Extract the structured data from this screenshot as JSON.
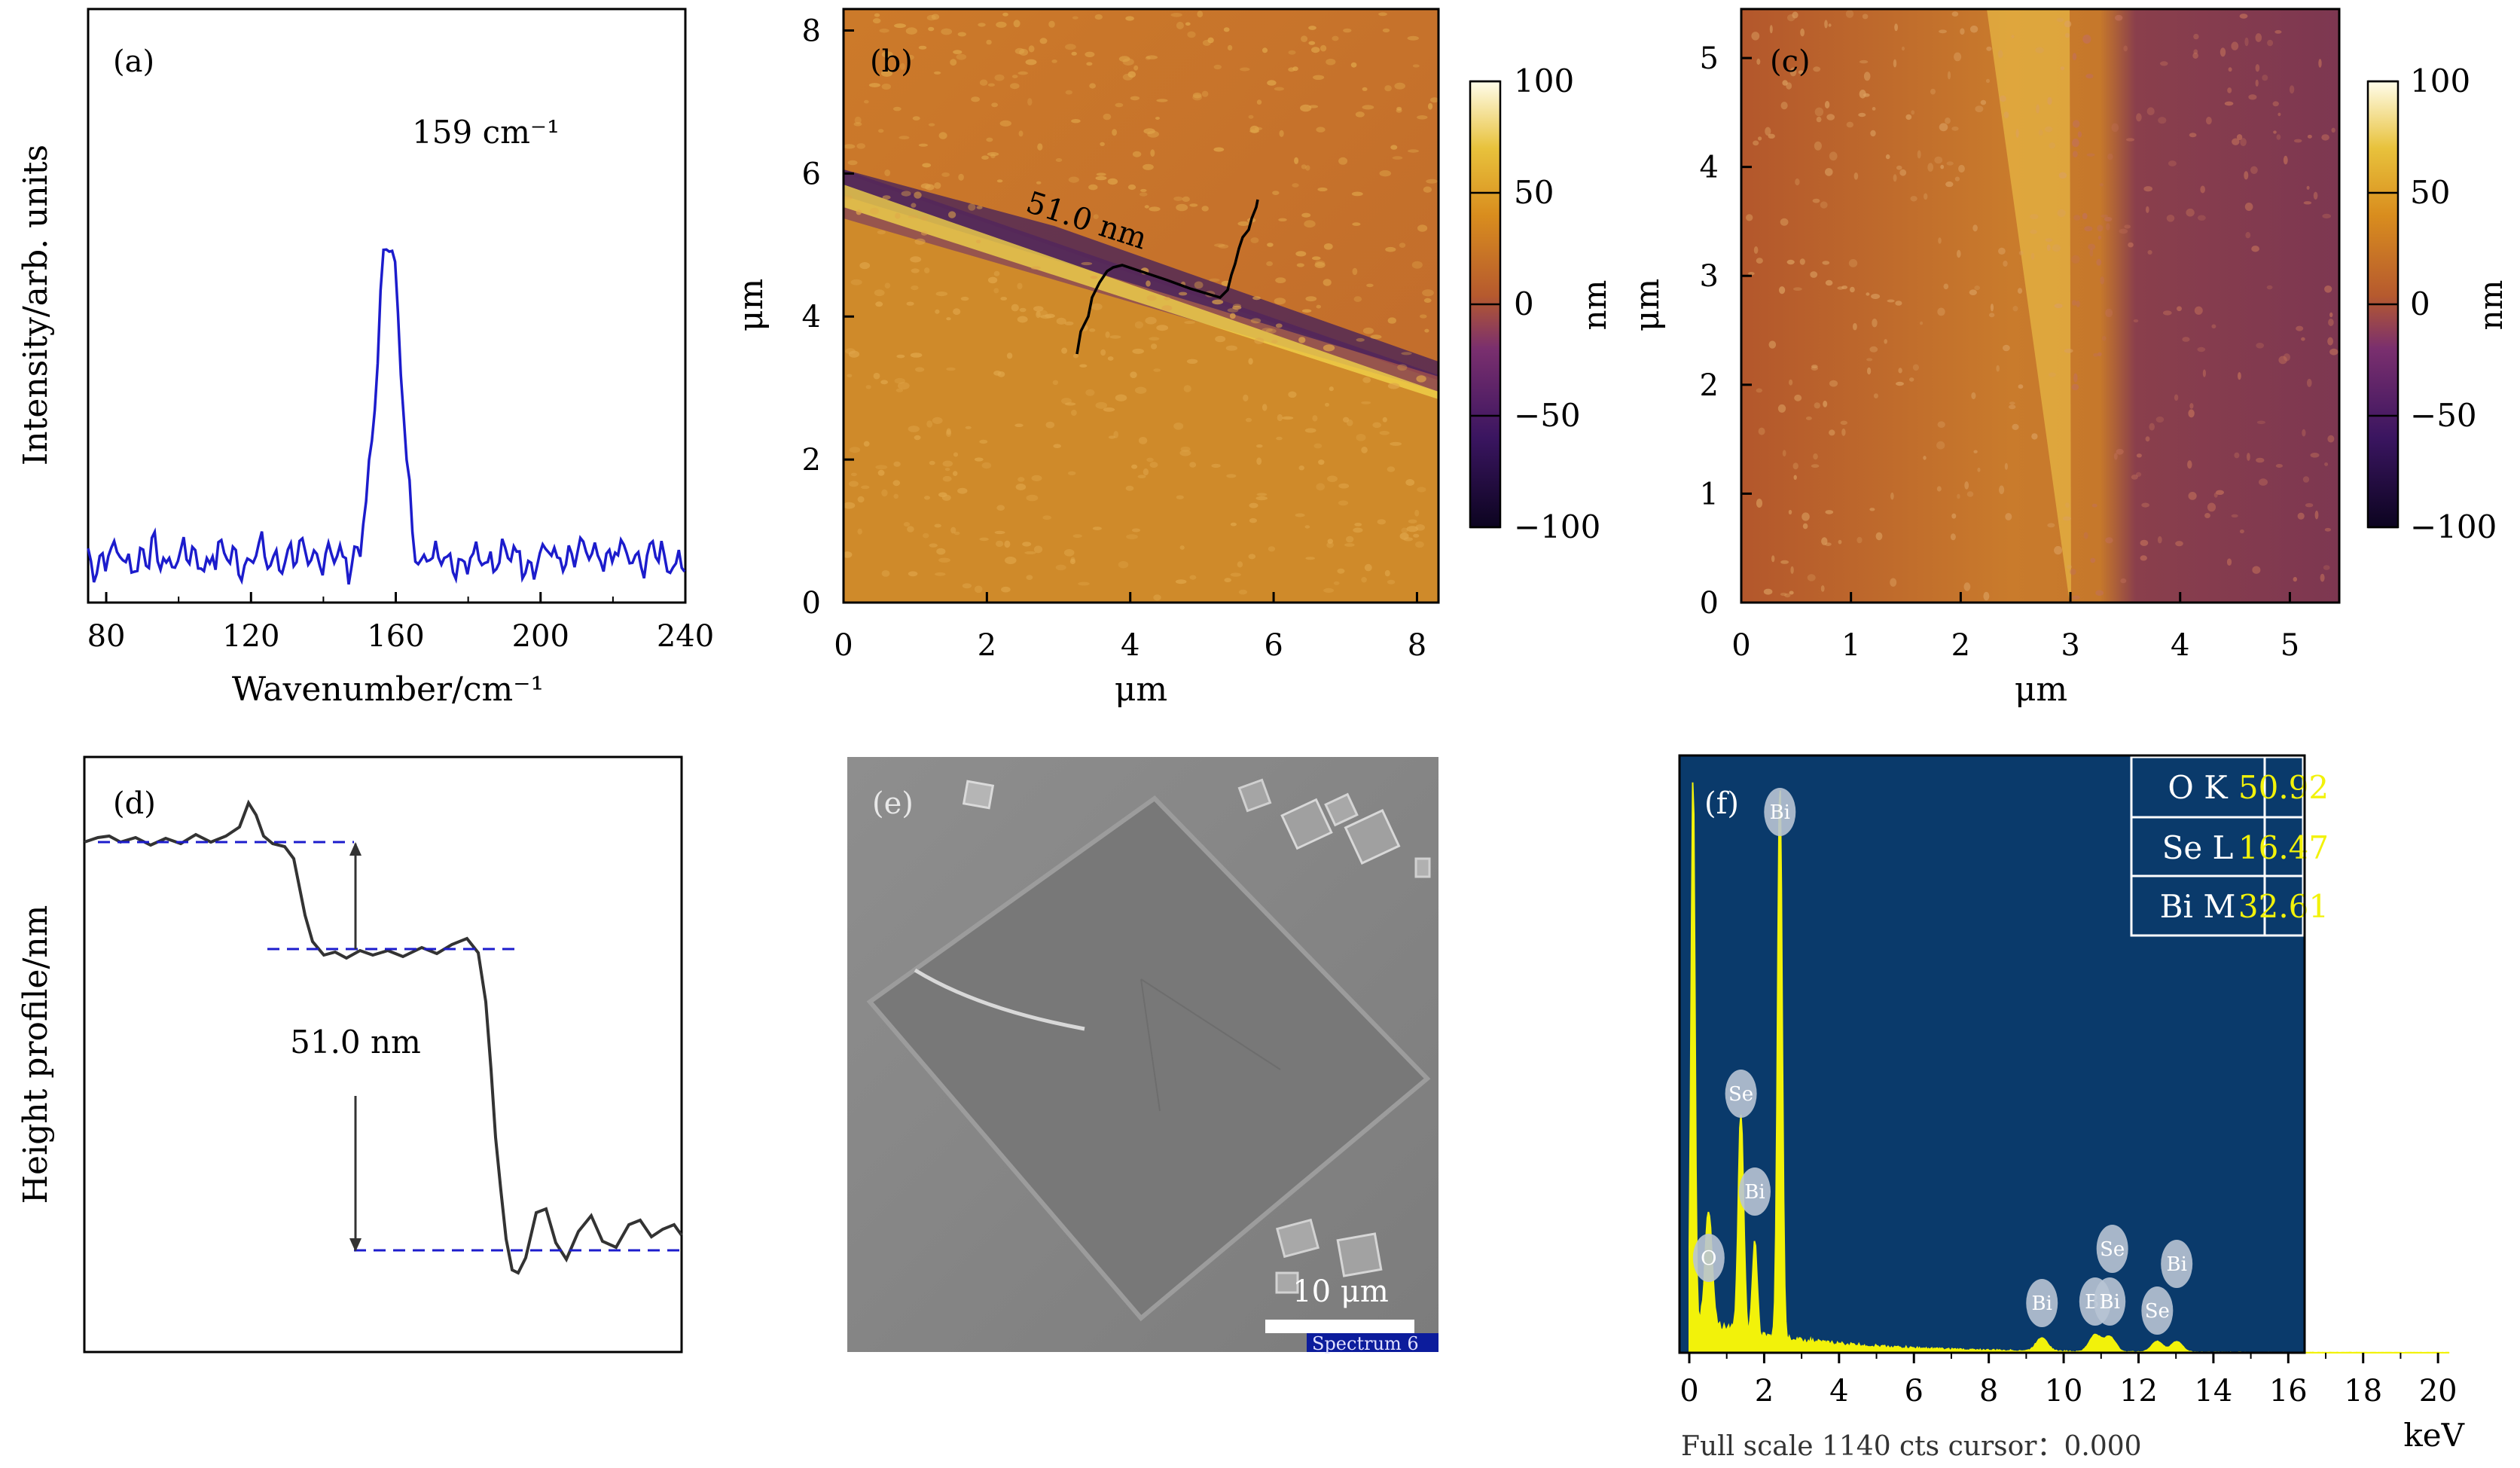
{
  "panels": {
    "a": {
      "label": "(a)",
      "ylabel": "Intensity/arb. units",
      "xlabel": "Wavenumber/cm⁻¹",
      "xticks": [
        "80",
        "120",
        "160",
        "200",
        "240"
      ],
      "peak_label": "159 cm⁻¹",
      "line_color": "#1c1ccc"
    },
    "b": {
      "label": "(b)",
      "xlabel": "μm",
      "ylabel": "μm",
      "xticks": [
        "0",
        "2",
        "4",
        "6",
        "8"
      ],
      "yticks": [
        "0",
        "2",
        "4",
        "6",
        "8"
      ],
      "step_label": "51.0 nm",
      "colorbar_unit": "nm",
      "colorbar_ticks": [
        "100",
        "50",
        "0",
        "−50",
        "−100"
      ]
    },
    "c": {
      "label": "(c)",
      "xlabel": "μm",
      "ylabel": "μm",
      "xticks": [
        "0",
        "1",
        "2",
        "3",
        "4",
        "5"
      ],
      "yticks": [
        "0",
        "1",
        "2",
        "3",
        "4",
        "5"
      ],
      "colorbar_unit": "nm",
      "colorbar_ticks": [
        "100",
        "50",
        "0",
        "−50",
        "−100"
      ]
    },
    "d": {
      "label": "(d)",
      "ylabel": "Height profile/nm",
      "step_label": "51.0 nm",
      "dash_color": "#1c1ccc"
    },
    "e": {
      "label": "(e)",
      "scale_label": "10 μm",
      "spectrum_label": "Spectrum 6"
    },
    "f": {
      "label": "(f)",
      "xlabel": "keV",
      "xticks": [
        "0",
        "2",
        "4",
        "6",
        "8",
        "10",
        "12",
        "14",
        "16",
        "18",
        "20"
      ],
      "footer": "Full scale 1140 cts cursor：0.000",
      "table": [
        {
          "element": "O K",
          "value": "50.92"
        },
        {
          "element": "Se L",
          "value": "16.47"
        },
        {
          "element": "Bi M",
          "value": "32.61"
        }
      ],
      "peak_tags": [
        "Bi",
        "Se",
        "Bi",
        "O",
        "Bi",
        "Bi",
        "Bi",
        "Se",
        "Se",
        "Bi"
      ],
      "bg_color": "#0a3a6b",
      "spectrum_color": "#f2f20a",
      "value_color": "#f2f20a"
    }
  }
}
